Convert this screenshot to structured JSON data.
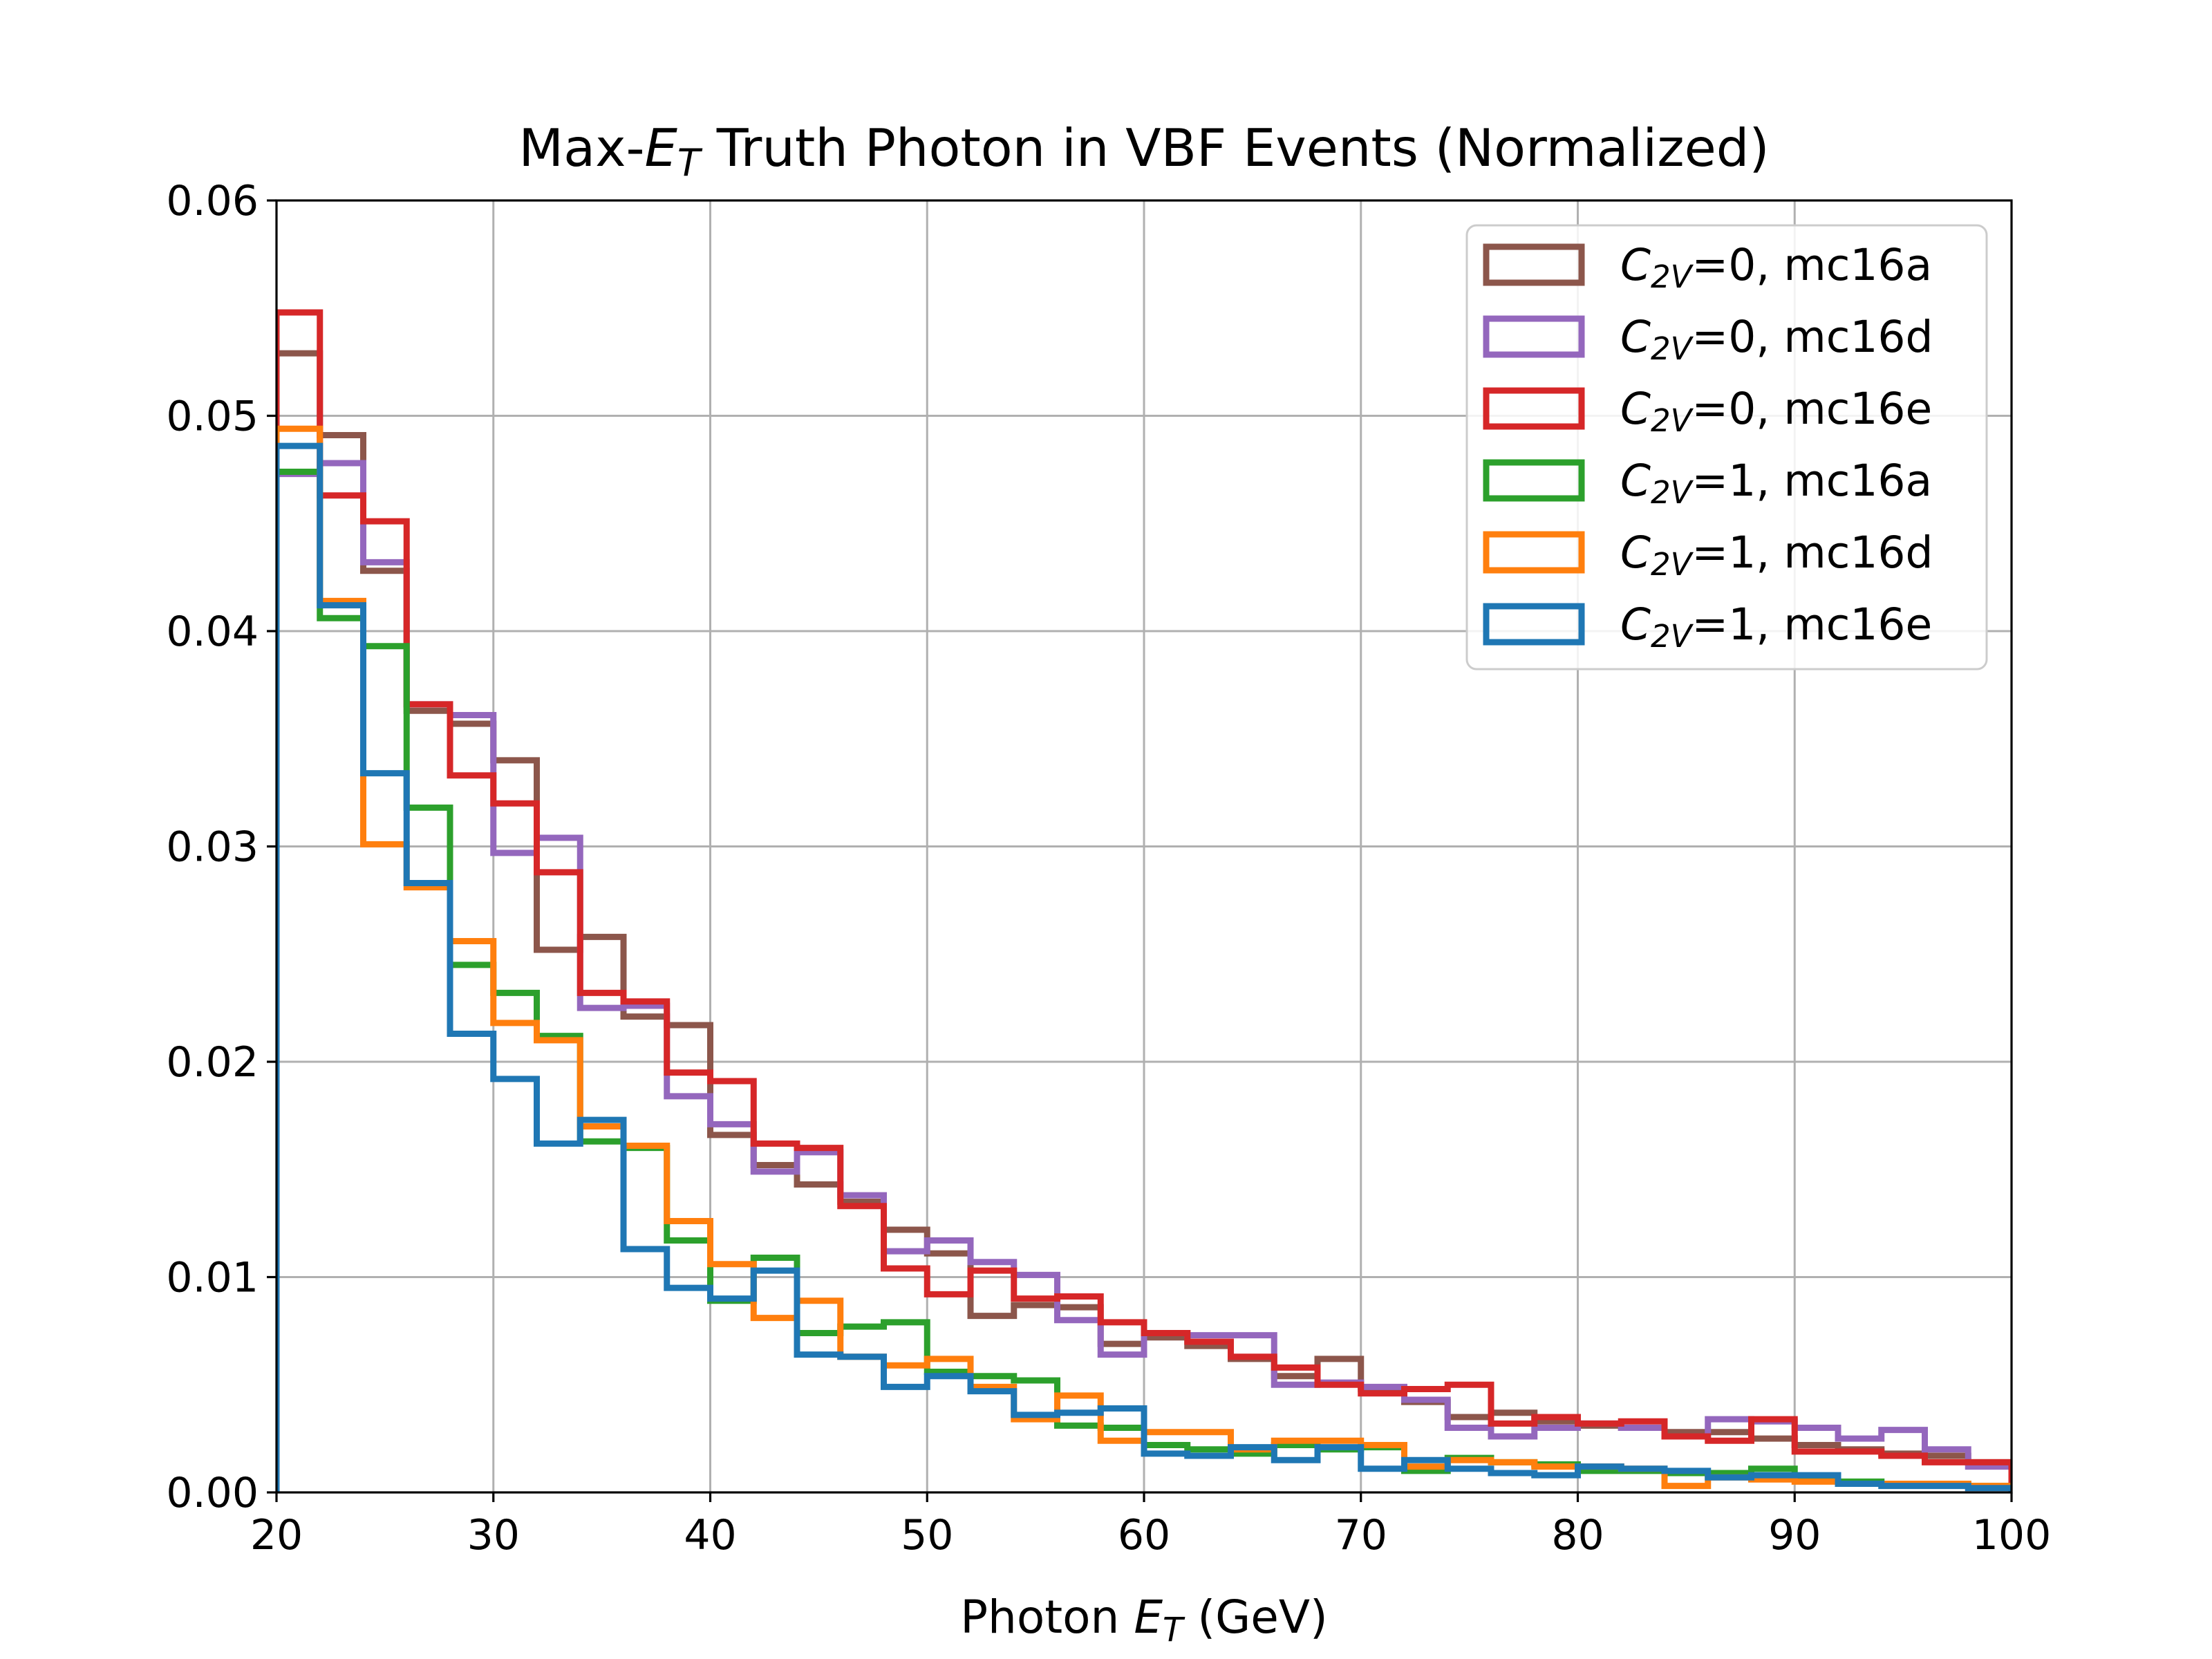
{
  "chart_data": {
    "type": "histogram-step",
    "title": {
      "pre": "Max-",
      "var": "E",
      "sub": "T",
      "post": " Truth Photon in VBF Events (Normalized)"
    },
    "xlabel": {
      "pre": "Photon ",
      "var": "E",
      "sub": "T",
      "post": " (GeV)"
    },
    "ylabel": "",
    "xlim": [
      20,
      100
    ],
    "ylim": [
      0,
      0.06
    ],
    "xticks": [
      20,
      30,
      40,
      50,
      60,
      70,
      80,
      90,
      100
    ],
    "xtick_labels": [
      "20",
      "30",
      "40",
      "50",
      "60",
      "70",
      "80",
      "90",
      "100"
    ],
    "yticks": [
      0,
      0.01,
      0.02,
      0.03,
      0.04,
      0.05,
      0.06
    ],
    "ytick_labels": [
      "0.00",
      "0.01",
      "0.02",
      "0.03",
      "0.04",
      "0.05",
      "0.06"
    ],
    "grid": true,
    "legend_position": "top-right",
    "bin_edges": [
      20,
      22,
      24,
      26,
      28,
      30,
      32,
      34,
      36,
      38,
      40,
      42,
      44,
      46,
      48,
      50,
      52,
      54,
      56,
      58,
      60,
      62,
      64,
      66,
      68,
      70,
      72,
      74,
      76,
      78,
      80,
      82,
      84,
      86,
      88,
      90,
      92,
      94,
      96,
      98,
      100
    ],
    "series": [
      {
        "name_var": "C",
        "name_sub": "2V",
        "name_rest": "=0, mc16a",
        "color": "#8c564b",
        "values": [
          0.0529,
          0.0491,
          0.0428,
          0.0363,
          0.0357,
          0.034,
          0.0252,
          0.0258,
          0.0221,
          0.0217,
          0.0166,
          0.0152,
          0.0143,
          0.0135,
          0.0122,
          0.0111,
          0.0082,
          0.0087,
          0.0086,
          0.0069,
          0.0072,
          0.0068,
          0.0062,
          0.0054,
          0.0062,
          0.0048,
          0.0042,
          0.0035,
          0.0037,
          0.0033,
          0.0031,
          0.003,
          0.0028,
          0.0028,
          0.0025,
          0.0022,
          0.002,
          0.0018,
          0.0017,
          0.0014
        ]
      },
      {
        "name_var": "C",
        "name_sub": "2V",
        "name_rest": "=0, mc16d",
        "color": "#9467bd",
        "values": [
          0.0473,
          0.0478,
          0.0432,
          0.0366,
          0.0361,
          0.0297,
          0.0304,
          0.0225,
          0.0226,
          0.0184,
          0.0171,
          0.0149,
          0.0158,
          0.0138,
          0.0112,
          0.0117,
          0.0107,
          0.0101,
          0.008,
          0.0064,
          0.0074,
          0.0073,
          0.0073,
          0.005,
          0.0051,
          0.0049,
          0.0043,
          0.003,
          0.0026,
          0.003,
          0.0032,
          0.003,
          0.0026,
          0.0034,
          0.0033,
          0.003,
          0.0025,
          0.0029,
          0.002,
          0.0012
        ]
      },
      {
        "name_var": "C",
        "name_sub": "2V",
        "name_rest": "=0, mc16e",
        "color": "#d62728",
        "values": [
          0.0548,
          0.0463,
          0.0451,
          0.0366,
          0.0333,
          0.032,
          0.0288,
          0.0232,
          0.0228,
          0.0195,
          0.0191,
          0.0162,
          0.016,
          0.0133,
          0.0104,
          0.0092,
          0.0103,
          0.009,
          0.0091,
          0.0079,
          0.0074,
          0.007,
          0.0063,
          0.0058,
          0.005,
          0.0046,
          0.0048,
          0.005,
          0.0032,
          0.0035,
          0.0032,
          0.0033,
          0.0026,
          0.0024,
          0.0034,
          0.0019,
          0.0019,
          0.0017,
          0.0014,
          0.0014
        ]
      },
      {
        "name_var": "C",
        "name_sub": "2V",
        "name_rest": "=1, mc16a",
        "color": "#2ca02c",
        "values": [
          0.0474,
          0.0406,
          0.0393,
          0.0318,
          0.0245,
          0.0232,
          0.0212,
          0.0163,
          0.016,
          0.0117,
          0.0089,
          0.0109,
          0.0074,
          0.0077,
          0.0079,
          0.0056,
          0.0054,
          0.0052,
          0.0031,
          0.003,
          0.0022,
          0.002,
          0.0018,
          0.0022,
          0.002,
          0.0021,
          0.001,
          0.0016,
          0.0014,
          0.0013,
          0.001,
          0.001,
          0.0009,
          0.0009,
          0.0011,
          0.0006,
          0.0005,
          0.0004,
          0.0004,
          0.0003
        ]
      },
      {
        "name_var": "C",
        "name_sub": "2V",
        "name_rest": "=1, mc16d",
        "color": "#ff7f0e",
        "values": [
          0.0494,
          0.0414,
          0.0301,
          0.0281,
          0.0256,
          0.0218,
          0.021,
          0.017,
          0.0161,
          0.0126,
          0.0106,
          0.0081,
          0.0089,
          0.0063,
          0.0059,
          0.0062,
          0.0049,
          0.0034,
          0.0045,
          0.0024,
          0.0028,
          0.0028,
          0.002,
          0.0024,
          0.0024,
          0.0022,
          0.0012,
          0.0015,
          0.0014,
          0.0012,
          0.0012,
          0.0011,
          0.0003,
          0.0007,
          0.0006,
          0.0005,
          0.0004,
          0.0004,
          0.0004,
          0.0003
        ]
      },
      {
        "name_var": "C",
        "name_sub": "2V",
        "name_rest": "=1, mc16e",
        "color": "#1f77b4",
        "values": [
          0.0486,
          0.0412,
          0.0334,
          0.0283,
          0.0213,
          0.0192,
          0.0162,
          0.0173,
          0.0113,
          0.0095,
          0.009,
          0.0103,
          0.0064,
          0.0063,
          0.0049,
          0.0054,
          0.0047,
          0.0036,
          0.0037,
          0.0039,
          0.0018,
          0.0017,
          0.0021,
          0.0015,
          0.0021,
          0.0011,
          0.0015,
          0.0011,
          0.0009,
          0.0008,
          0.0012,
          0.0011,
          0.001,
          0.0007,
          0.0008,
          0.0008,
          0.0004,
          0.0003,
          0.0003,
          0.0002
        ]
      }
    ]
  }
}
